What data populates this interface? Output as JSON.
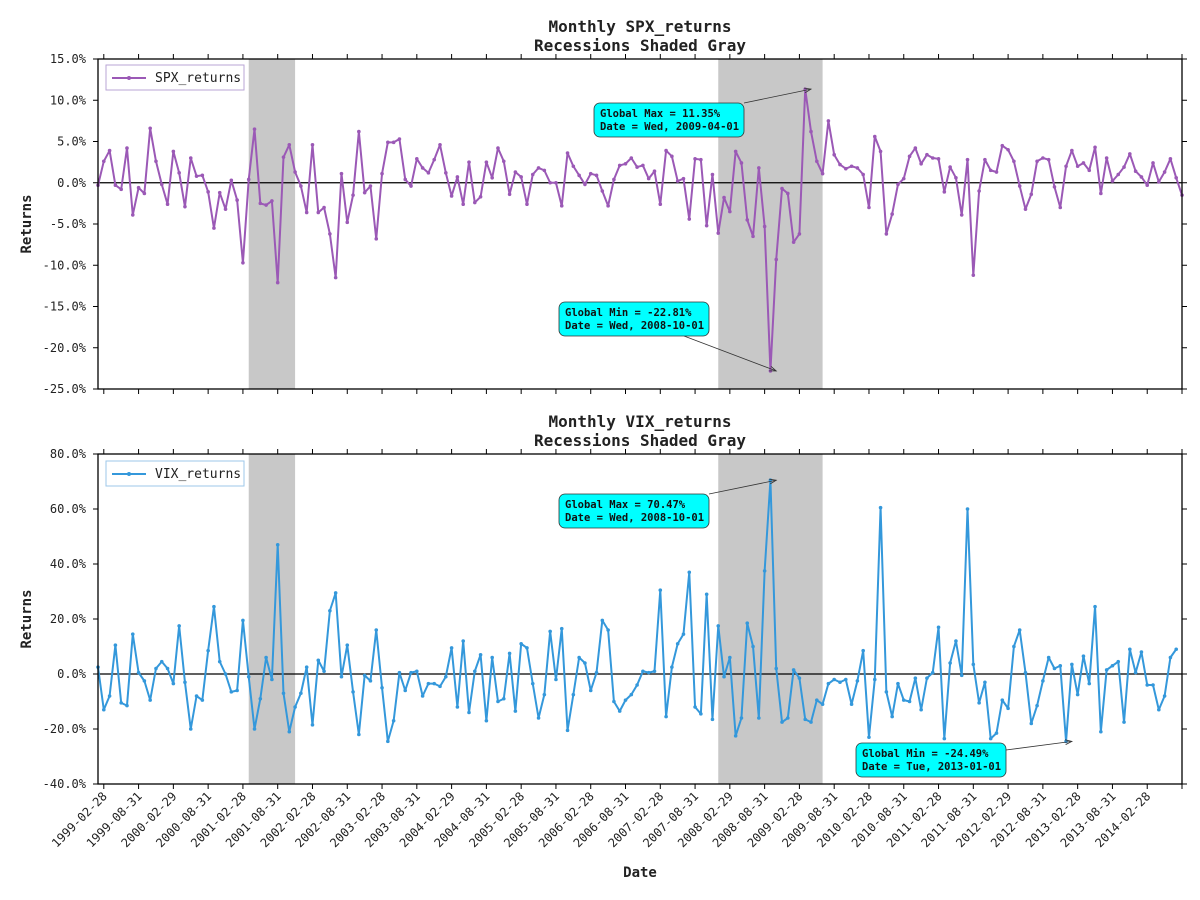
{
  "chart_data": [
    {
      "type": "line",
      "title": "Monthly SPX_returns",
      "subtitle": "Recessions Shaded Gray",
      "xlabel": "Date",
      "ylabel": "Returns",
      "ylim": [
        -25,
        15
      ],
      "yticks": [
        "15.0%",
        "10.0%",
        "5.0%",
        "0.0%",
        "-5.0%",
        "-10.0%",
        "-15.0%",
        "-20.0%",
        "-25.0%"
      ],
      "ytick_values": [
        15,
        10,
        5,
        0,
        -5,
        -10,
        -15,
        -20,
        -25
      ],
      "x_start": "1999-01",
      "x_count": 188,
      "legend": "SPX_returns",
      "color": "#9b59b6",
      "recessions": [
        [
          "2001-03",
          "2001-11"
        ],
        [
          "2007-12",
          "2009-06"
        ]
      ],
      "annotations": [
        {
          "line1": "Global Max = 11.35%",
          "line2": "Date = Wed, 2009-04-01",
          "target": [
            "2009-04",
            11.35
          ]
        },
        {
          "line1": "Global Min = -22.81%",
          "line2": "Date = Wed, 2008-10-01",
          "target": [
            "2008-10",
            -22.81
          ]
        }
      ],
      "values": [
        -0.3,
        2.6,
        3.9,
        -0.3,
        -0.8,
        4.2,
        -3.9,
        -0.6,
        -1.3,
        6.6,
        2.6,
        -0.2,
        -2.6,
        3.8,
        1.2,
        -2.9,
        3.0,
        0.8,
        0.9,
        -1.1,
        -5.5,
        -1.2,
        -3.2,
        0.3,
        -2.1,
        -9.7,
        0.4,
        6.5,
        -2.5,
        -2.7,
        -2.2,
        -12.1,
        3.1,
        4.6,
        1.3,
        -0.4,
        -3.6,
        4.6,
        -3.6,
        -3.0,
        -6.2,
        -11.5,
        1.1,
        -4.8,
        -1.5,
        6.2,
        -1.2,
        -0.4,
        -6.8,
        1.1,
        4.9,
        4.9,
        5.3,
        0.4,
        -0.4,
        2.9,
        1.8,
        1.2,
        2.8,
        4.6,
        1.2,
        -1.6,
        0.7,
        -2.6,
        2.5,
        -2.4,
        -1.7,
        2.5,
        0.6,
        4.2,
        2.6,
        -1.4,
        1.3,
        0.7,
        -2.6,
        1.0,
        1.8,
        1.5,
        0.0,
        0.0,
        -2.8,
        3.6,
        2.0,
        0.9,
        -0.2,
        1.1,
        0.9,
        -1.0,
        -2.8,
        0.4,
        2.1,
        2.3,
        3.0,
        1.9,
        2.1,
        0.5,
        1.4,
        -2.6,
        3.9,
        3.2,
        0.2,
        0.5,
        -4.4,
        2.9,
        2.8,
        -5.2,
        1.0,
        -6.1,
        -1.8,
        -3.5,
        3.8,
        2.4,
        -4.5,
        -6.5,
        1.8,
        -5.3,
        -22.81,
        -9.3,
        -0.7,
        -1.3,
        -7.2,
        -6.2,
        11.35,
        6.2,
        2.6,
        1.1,
        7.5,
        3.4,
        2.2,
        1.7,
        2.0,
        1.8,
        1.0,
        -3.0,
        5.6,
        3.8,
        -6.2,
        -3.8,
        -0.2,
        0.5,
        3.2,
        4.2,
        2.3,
        3.4,
        3.0,
        2.9,
        -1.1,
        1.9,
        0.6,
        -3.9,
        2.8,
        -11.2,
        -1.0,
        2.8,
        1.5,
        1.3,
        4.5,
        4.0,
        2.6,
        -0.4,
        -3.2,
        -1.4,
        2.6,
        3.0,
        2.8,
        -0.5,
        -3.0,
        2.0,
        3.9,
        2.0,
        2.4,
        1.5,
        4.3,
        -1.3,
        3.0,
        0.2,
        1.0,
        1.9,
        3.5,
        1.4,
        0.7,
        -0.3,
        2.4,
        0.1,
        1.3,
        2.9,
        0.6,
        -1.5
      ]
    },
    {
      "type": "line",
      "title": "Monthly VIX_returns",
      "subtitle": "Recessions Shaded Gray",
      "xlabel": "Date",
      "ylabel": "Returns",
      "ylim": [
        -40,
        80
      ],
      "yticks": [
        "80.0%",
        "60.0%",
        "40.0%",
        "20.0%",
        "0.0%",
        "-20.0%",
        "-40.0%"
      ],
      "ytick_values": [
        80,
        60,
        40,
        20,
        0,
        -20,
        -40
      ],
      "x_start": "1999-01",
      "x_count": 188,
      "legend": "VIX_returns",
      "color": "#3498db",
      "recessions": [
        [
          "2001-03",
          "2001-11"
        ],
        [
          "2007-12",
          "2009-06"
        ]
      ],
      "annotations": [
        {
          "line1": "Global Max = 70.47%",
          "line2": "Date = Wed, 2008-10-01",
          "target": [
            "2008-10",
            70.47
          ]
        },
        {
          "line1": "Global Min = -24.49%",
          "line2": "Date = Tue, 2013-01-01",
          "target": [
            "2013-01",
            -24.49
          ]
        }
      ],
      "values": [
        2.5,
        -13.0,
        -8.0,
        10.5,
        -10.5,
        -11.5,
        14.5,
        0.5,
        -2.5,
        -9.5,
        2.0,
        4.5,
        2.0,
        -3.5,
        17.5,
        -3.0,
        -20.0,
        -8.0,
        -9.5,
        8.5,
        24.5,
        4.5,
        0.0,
        -6.5,
        -6.0,
        19.5,
        -1.0,
        -20.0,
        -9.0,
        6.0,
        -2.0,
        47.0,
        -7.0,
        -21.0,
        -12.0,
        -7.0,
        2.5,
        -18.5,
        5.0,
        1.0,
        23.0,
        29.5,
        -1.0,
        10.5,
        -6.5,
        -22.0,
        -0.5,
        -2.5,
        16.0,
        -5.0,
        -24.5,
        -17.0,
        0.5,
        -6.0,
        0.5,
        1.0,
        -8.0,
        -3.5,
        -3.5,
        -4.5,
        -1.0,
        9.5,
        -12.0,
        12.0,
        -14.0,
        1.0,
        7.0,
        -17.0,
        6.0,
        -10.0,
        -9.0,
        7.5,
        -13.5,
        11.0,
        9.5,
        -3.5,
        -16.0,
        -7.5,
        15.5,
        -2.0,
        16.5,
        -20.5,
        -7.5,
        6.0,
        4.0,
        -6.0,
        0.5,
        19.5,
        16.0,
        -10.0,
        -13.5,
        -9.5,
        -7.5,
        -4.0,
        1.0,
        0.5,
        1.0,
        30.5,
        -15.5,
        2.5,
        11.0,
        14.5,
        37.0,
        -12.0,
        -14.5,
        29.0,
        -16.5,
        17.5,
        -1.0,
        6.0,
        -22.5,
        -16.0,
        18.5,
        10.0,
        -16.0,
        37.5,
        70.47,
        2.0,
        -17.5,
        -16.0,
        1.5,
        -1.5,
        -16.5,
        -17.5,
        -9.5,
        -11.0,
        -3.5,
        -2.0,
        -3.0,
        -2.0,
        -11.0,
        -2.5,
        8.5,
        -23.0,
        -2.0,
        60.5,
        -6.5,
        -15.5,
        -3.5,
        -9.5,
        -10.0,
        -1.5,
        -13.0,
        -1.5,
        0.5,
        17.0,
        -23.5,
        4.0,
        12.0,
        -0.5,
        60.0,
        3.5,
        -10.5,
        -3.0,
        -23.5,
        -21.5,
        -9.5,
        -12.5,
        10.0,
        16.0,
        0.5,
        -18.0,
        -11.5,
        -2.5,
        6.0,
        2.0,
        3.0,
        -24.49,
        3.5,
        -7.5,
        6.5,
        -3.5,
        24.5,
        -21.0,
        1.5,
        3.0,
        4.5,
        -17.5,
        9.0,
        0.5,
        8.0,
        -4.0,
        -4.0,
        -13.0,
        -8.0,
        6.0,
        9.0
      ]
    }
  ],
  "x_axis": {
    "label": "Date",
    "ticks": [
      "1999-02-28",
      "1999-08-31",
      "2000-02-29",
      "2000-08-31",
      "2001-02-28",
      "2001-08-31",
      "2002-02-28",
      "2002-08-31",
      "2003-02-28",
      "2003-08-31",
      "2004-02-29",
      "2004-08-31",
      "2005-02-28",
      "2005-08-31",
      "2006-02-28",
      "2006-08-31",
      "2007-02-28",
      "2007-08-31",
      "2008-02-29",
      "2008-08-31",
      "2009-02-28",
      "2009-08-31",
      "2010-02-28",
      "2010-08-31",
      "2011-02-28",
      "2011-08-31",
      "2012-02-29",
      "2012-08-31",
      "2013-02-28",
      "2013-08-31",
      "2014-02-28"
    ]
  },
  "colors": {
    "recession": "#c8c8c8",
    "annotation_box": "#00ffff",
    "zero_line": "#000000"
  }
}
